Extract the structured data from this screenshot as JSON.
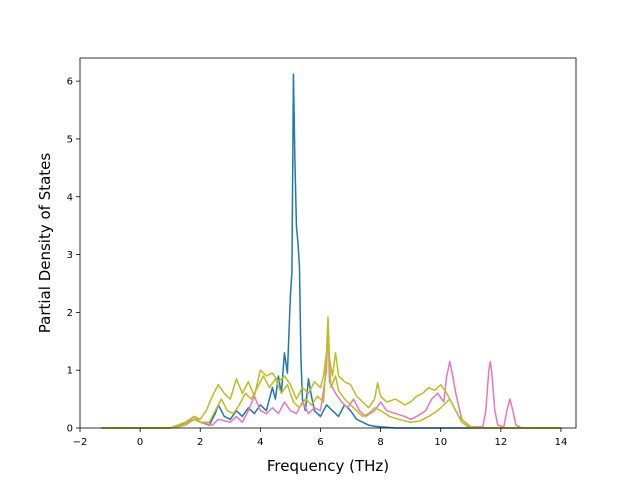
{
  "chart_data": {
    "type": "line",
    "title": "",
    "xlabel": "Frequency (THz)",
    "ylabel": "Partial Density of States",
    "xlim": [
      -2,
      14.5
    ],
    "ylim": [
      0,
      6.4
    ],
    "grid": false,
    "legend": "none",
    "xticks": [
      -2,
      0,
      2,
      4,
      6,
      8,
      10,
      12,
      14
    ],
    "yticks": [
      0,
      1,
      2,
      3,
      4,
      5,
      6
    ],
    "series": [
      {
        "color": "#1f77b4",
        "points": [
          [
            -1.3,
            0
          ],
          [
            1.0,
            0
          ],
          [
            1.5,
            0.05
          ],
          [
            1.8,
            0.15
          ],
          [
            2.0,
            0.1
          ],
          [
            2.3,
            0.05
          ],
          [
            2.5,
            0.25
          ],
          [
            2.6,
            0.4
          ],
          [
            2.8,
            0.2
          ],
          [
            3.0,
            0.15
          ],
          [
            3.2,
            0.3
          ],
          [
            3.4,
            0.2
          ],
          [
            3.6,
            0.35
          ],
          [
            3.8,
            0.25
          ],
          [
            4.0,
            0.4
          ],
          [
            4.2,
            0.3
          ],
          [
            4.4,
            0.7
          ],
          [
            4.5,
            0.5
          ],
          [
            4.6,
            0.9
          ],
          [
            4.7,
            0.6
          ],
          [
            4.8,
            1.3
          ],
          [
            4.9,
            0.95
          ],
          [
            5.0,
            2.3
          ],
          [
            5.05,
            2.7
          ],
          [
            5.1,
            6.12
          ],
          [
            5.15,
            4.6
          ],
          [
            5.2,
            3.5
          ],
          [
            5.25,
            3.2
          ],
          [
            5.3,
            2.8
          ],
          [
            5.35,
            1.2
          ],
          [
            5.4,
            0.5
          ],
          [
            5.5,
            0.3
          ],
          [
            5.6,
            0.85
          ],
          [
            5.7,
            0.55
          ],
          [
            5.8,
            0.3
          ],
          [
            6.0,
            0.2
          ],
          [
            6.2,
            0.4
          ],
          [
            6.4,
            0.3
          ],
          [
            6.6,
            0.2
          ],
          [
            6.8,
            0.4
          ],
          [
            7.0,
            0.3
          ],
          [
            7.2,
            0.15
          ],
          [
            7.4,
            0.1
          ],
          [
            7.6,
            0.05
          ],
          [
            7.8,
            0.03
          ],
          [
            8.0,
            0.02
          ],
          [
            8.5,
            0
          ],
          [
            14,
            0
          ]
        ]
      },
      {
        "color": "#e377c2",
        "points": [
          [
            -1.3,
            0
          ],
          [
            1.0,
            0
          ],
          [
            1.6,
            0.1
          ],
          [
            1.8,
            0.2
          ],
          [
            2.0,
            0.1
          ],
          [
            2.4,
            0.05
          ],
          [
            2.6,
            0.15
          ],
          [
            3.0,
            0.1
          ],
          [
            3.2,
            0.2
          ],
          [
            3.4,
            0.1
          ],
          [
            3.6,
            0.3
          ],
          [
            3.8,
            0.55
          ],
          [
            4.0,
            0.3
          ],
          [
            4.2,
            0.25
          ],
          [
            4.4,
            0.35
          ],
          [
            4.6,
            0.25
          ],
          [
            4.8,
            0.45
          ],
          [
            5.0,
            0.3
          ],
          [
            5.2,
            0.25
          ],
          [
            5.4,
            0.45
          ],
          [
            5.6,
            0.25
          ],
          [
            5.8,
            0.35
          ],
          [
            6.0,
            0.3
          ],
          [
            6.2,
            1.0
          ],
          [
            6.25,
            1.8
          ],
          [
            6.3,
            0.8
          ],
          [
            6.5,
            0.6
          ],
          [
            6.7,
            0.45
          ],
          [
            6.9,
            0.35
          ],
          [
            7.1,
            0.5
          ],
          [
            7.3,
            0.3
          ],
          [
            7.5,
            0.2
          ],
          [
            7.8,
            0.3
          ],
          [
            8.0,
            0.45
          ],
          [
            8.2,
            0.3
          ],
          [
            8.5,
            0.25
          ],
          [
            8.8,
            0.2
          ],
          [
            9.0,
            0.15
          ],
          [
            9.2,
            0.2
          ],
          [
            9.5,
            0.3
          ],
          [
            9.7,
            0.5
          ],
          [
            9.9,
            0.6
          ],
          [
            10.1,
            0.45
          ],
          [
            10.2,
            0.9
          ],
          [
            10.3,
            1.15
          ],
          [
            10.4,
            0.9
          ],
          [
            10.5,
            0.6
          ],
          [
            10.7,
            0.15
          ],
          [
            11.0,
            0.02
          ],
          [
            11.4,
            0.02
          ],
          [
            11.5,
            0.3
          ],
          [
            11.6,
            1.0
          ],
          [
            11.65,
            1.15
          ],
          [
            11.7,
            0.95
          ],
          [
            11.8,
            0.3
          ],
          [
            11.9,
            0.05
          ],
          [
            12.1,
            0.02
          ],
          [
            12.2,
            0.3
          ],
          [
            12.3,
            0.5
          ],
          [
            12.4,
            0.3
          ],
          [
            12.5,
            0.05
          ],
          [
            12.7,
            0
          ],
          [
            14,
            0
          ]
        ]
      },
      {
        "color": "#bcbd22",
        "points": [
          [
            -1.3,
            0
          ],
          [
            1.0,
            0
          ],
          [
            1.5,
            0.1
          ],
          [
            1.8,
            0.2
          ],
          [
            2.0,
            0.15
          ],
          [
            2.2,
            0.3
          ],
          [
            2.4,
            0.55
          ],
          [
            2.6,
            0.75
          ],
          [
            2.8,
            0.6
          ],
          [
            3.0,
            0.5
          ],
          [
            3.2,
            0.85
          ],
          [
            3.4,
            0.6
          ],
          [
            3.6,
            0.8
          ],
          [
            3.8,
            0.55
          ],
          [
            4.0,
            1.0
          ],
          [
            4.2,
            0.9
          ],
          [
            4.4,
            0.95
          ],
          [
            4.6,
            0.8
          ],
          [
            4.8,
            0.9
          ],
          [
            5.0,
            0.75
          ],
          [
            5.2,
            0.5
          ],
          [
            5.4,
            0.7
          ],
          [
            5.6,
            0.6
          ],
          [
            5.8,
            0.8
          ],
          [
            6.0,
            0.7
          ],
          [
            6.1,
            0.9
          ],
          [
            6.2,
            1.3
          ],
          [
            6.25,
            1.92
          ],
          [
            6.3,
            1.2
          ],
          [
            6.4,
            0.9
          ],
          [
            6.5,
            1.3
          ],
          [
            6.6,
            0.9
          ],
          [
            6.8,
            0.8
          ],
          [
            7.0,
            0.75
          ],
          [
            7.2,
            0.55
          ],
          [
            7.4,
            0.45
          ],
          [
            7.6,
            0.35
          ],
          [
            7.8,
            0.5
          ],
          [
            7.9,
            0.78
          ],
          [
            8.0,
            0.55
          ],
          [
            8.2,
            0.45
          ],
          [
            8.5,
            0.5
          ],
          [
            8.8,
            0.4
          ],
          [
            9.0,
            0.45
          ],
          [
            9.2,
            0.55
          ],
          [
            9.4,
            0.6
          ],
          [
            9.6,
            0.7
          ],
          [
            9.8,
            0.65
          ],
          [
            10.0,
            0.75
          ],
          [
            10.2,
            0.6
          ],
          [
            10.4,
            0.4
          ],
          [
            10.6,
            0.2
          ],
          [
            10.8,
            0.1
          ],
          [
            11.0,
            0
          ],
          [
            14,
            0
          ]
        ]
      },
      {
        "color": "#bcbd22",
        "points": [
          [
            -1.3,
            0
          ],
          [
            1.0,
            0
          ],
          [
            1.5,
            0.05
          ],
          [
            1.8,
            0.15
          ],
          [
            2.0,
            0.1
          ],
          [
            2.3,
            0.1
          ],
          [
            2.5,
            0.3
          ],
          [
            2.7,
            0.5
          ],
          [
            2.9,
            0.3
          ],
          [
            3.1,
            0.25
          ],
          [
            3.3,
            0.4
          ],
          [
            3.5,
            0.6
          ],
          [
            3.7,
            0.5
          ],
          [
            3.9,
            0.7
          ],
          [
            4.1,
            0.9
          ],
          [
            4.3,
            0.7
          ],
          [
            4.5,
            0.85
          ],
          [
            4.7,
            0.6
          ],
          [
            4.9,
            0.75
          ],
          [
            5.1,
            0.45
          ],
          [
            5.3,
            0.35
          ],
          [
            5.5,
            0.5
          ],
          [
            5.7,
            0.4
          ],
          [
            5.9,
            0.55
          ],
          [
            6.1,
            0.45
          ],
          [
            6.25,
            1.6
          ],
          [
            6.35,
            0.7
          ],
          [
            6.5,
            0.9
          ],
          [
            6.6,
            0.65
          ],
          [
            6.8,
            0.5
          ],
          [
            7.0,
            0.4
          ],
          [
            7.2,
            0.3
          ],
          [
            7.4,
            0.2
          ],
          [
            7.6,
            0.25
          ],
          [
            7.8,
            0.35
          ],
          [
            8.0,
            0.3
          ],
          [
            8.3,
            0.2
          ],
          [
            8.6,
            0.15
          ],
          [
            9.0,
            0.1
          ],
          [
            9.3,
            0.12
          ],
          [
            9.6,
            0.2
          ],
          [
            9.9,
            0.3
          ],
          [
            10.1,
            0.4
          ],
          [
            10.3,
            0.5
          ],
          [
            10.5,
            0.3
          ],
          [
            10.7,
            0.1
          ],
          [
            10.9,
            0.02
          ],
          [
            11.2,
            0
          ],
          [
            14,
            0
          ]
        ]
      }
    ]
  }
}
